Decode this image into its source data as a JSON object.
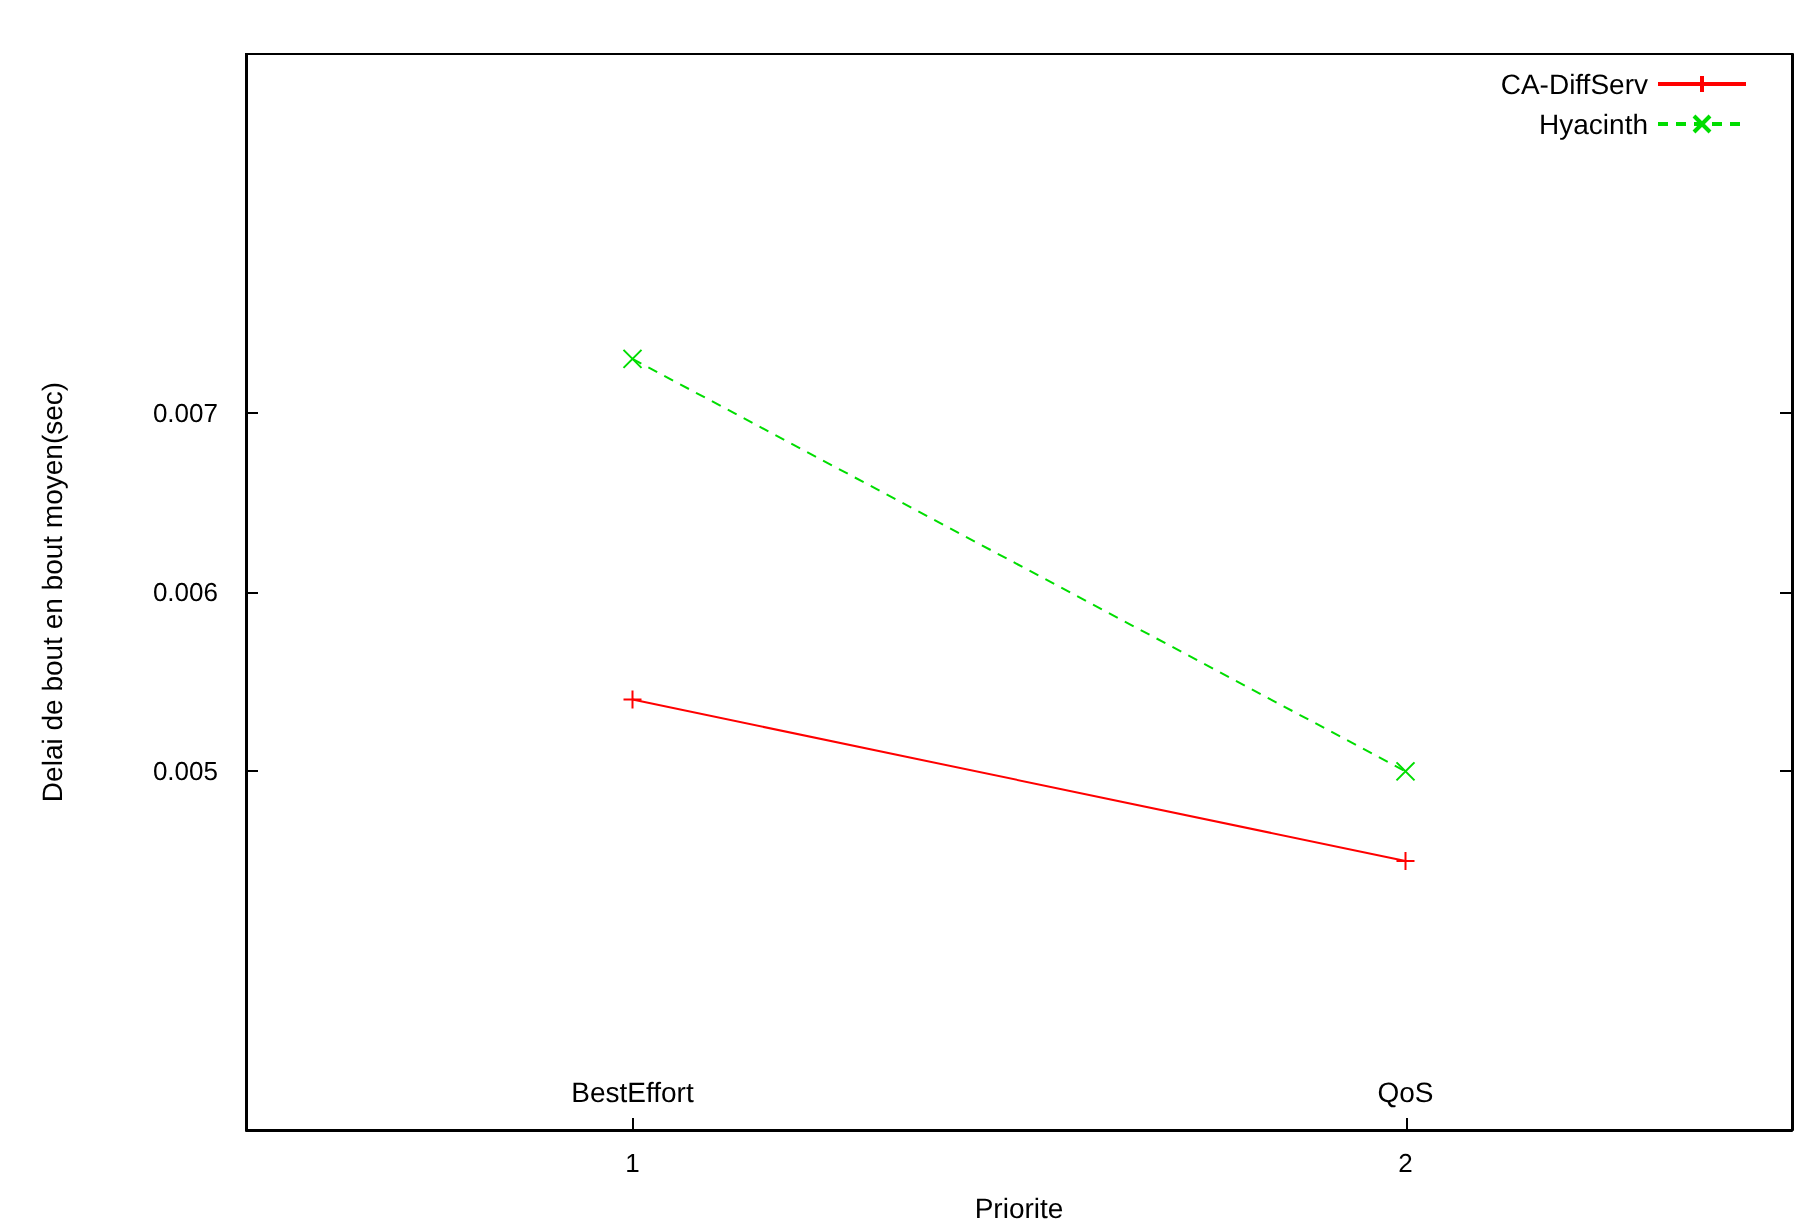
{
  "chart_data": {
    "type": "line",
    "xlabel": "Priorite",
    "ylabel": "Delai de bout en bout moyen(sec)",
    "x": [
      1,
      2
    ],
    "series": [
      {
        "name": "CA-DiffServ",
        "color": "#ff0000",
        "values": [
          0.0054,
          0.0045
        ],
        "marker": "plus",
        "line_style": "solid"
      },
      {
        "name": "Hyacinth",
        "color": "#00dd00",
        "values": [
          0.0073,
          0.005
        ],
        "marker": "cross",
        "line_style": "dashed"
      }
    ],
    "xlim": [
      0.5,
      2.5
    ],
    "xticks": [
      1,
      2
    ],
    "ylim": [
      0.003,
      0.009
    ],
    "yticks": [
      0.005,
      0.006,
      0.007
    ],
    "annotations": [
      "BestEffort",
      "QoS"
    ],
    "grid": false,
    "legend": "top right"
  }
}
